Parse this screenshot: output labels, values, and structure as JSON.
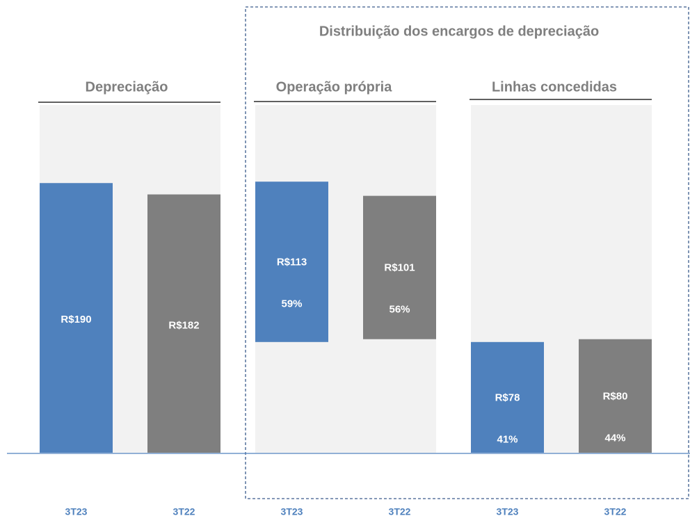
{
  "section_title": "Distribuição dos encargos de depreciação",
  "chart_data": [
    {
      "type": "bar",
      "title": "Depreciação",
      "categories": [
        "3T23",
        "3T22"
      ],
      "values": [
        190,
        182
      ],
      "value_labels": [
        "R$190",
        "R$182"
      ],
      "colors": [
        "#4f81bd",
        "#7f7f7f"
      ],
      "ylim": [
        0,
        245
      ]
    },
    {
      "type": "waterfall",
      "title": "Operação própria",
      "categories": [
        "3T23",
        "3T22"
      ],
      "values": [
        113,
        101
      ],
      "value_labels": [
        "R$113",
        "R$101"
      ],
      "shares": [
        59,
        56
      ],
      "share_labels": [
        "59%",
        "56%"
      ],
      "colors": [
        "#4f81bd",
        "#7f7f7f"
      ],
      "ylim": [
        0,
        245
      ]
    },
    {
      "type": "bar",
      "title": "Linhas concedidas",
      "categories": [
        "3T23",
        "3T22"
      ],
      "values": [
        78,
        80
      ],
      "value_labels": [
        "R$78",
        "R$80"
      ],
      "shares": [
        41,
        44
      ],
      "share_labels": [
        "41%",
        "44%"
      ],
      "colors": [
        "#4f81bd",
        "#7f7f7f"
      ],
      "ylim": [
        0,
        245
      ]
    }
  ]
}
